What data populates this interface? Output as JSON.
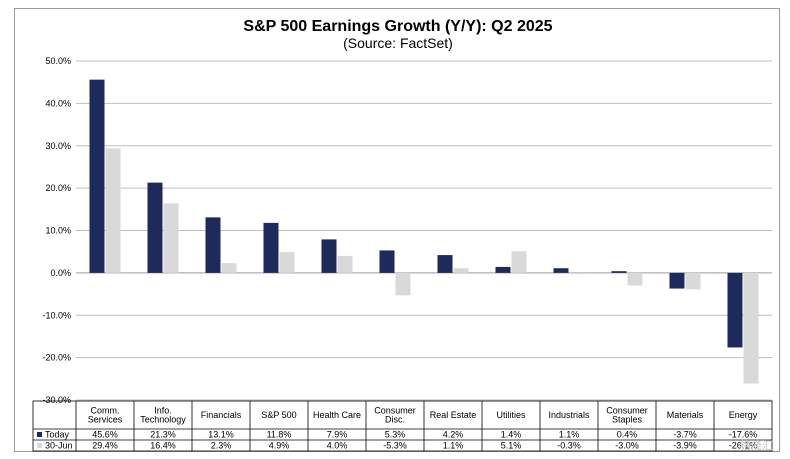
{
  "chart_data": {
    "type": "bar",
    "title": "S&P 500 Earnings Growth (Y/Y): Q2 2025",
    "subtitle": "(Source: FactSet)",
    "categories": [
      "Comm. Services",
      "Info. Technology",
      "Financials",
      "S&P 500",
      "Health Care",
      "Consumer Disc.",
      "Real Estate",
      "Utilities",
      "Industrials",
      "Consumer Staples",
      "Materials",
      "Energy"
    ],
    "category_lines": [
      [
        "Comm.",
        "Services"
      ],
      [
        "Info.",
        "Technology"
      ],
      [
        "Financials"
      ],
      [
        "S&P 500"
      ],
      [
        "Health Care"
      ],
      [
        "Consumer",
        "Disc."
      ],
      [
        "Real Estate"
      ],
      [
        "Utilities"
      ],
      [
        "Industrials"
      ],
      [
        "Consumer",
        "Staples"
      ],
      [
        "Materials"
      ],
      [
        "Energy"
      ]
    ],
    "series": [
      {
        "name": "Today",
        "color": "#1f2a5c",
        "values": [
          45.6,
          21.3,
          13.1,
          11.8,
          7.9,
          5.3,
          4.2,
          1.4,
          1.1,
          0.4,
          -3.7,
          -17.6
        ],
        "labels": [
          "45.6%",
          "21.3%",
          "13.1%",
          "11.8%",
          "7.9%",
          "5.3%",
          "4.2%",
          "1.4%",
          "1.1%",
          "0.4%",
          "-3.7%",
          "-17.6%"
        ]
      },
      {
        "name": "30-Jun",
        "color": "#d9d9d9",
        "values": [
          29.4,
          16.4,
          2.3,
          4.9,
          4.0,
          -5.3,
          1.1,
          5.1,
          -0.3,
          -3.0,
          -3.9,
          -26.1
        ],
        "labels": [
          "29.4%",
          "16.4%",
          "2.3%",
          "4.9%",
          "4.0%",
          "-5.3%",
          "1.1%",
          "5.1%",
          "-0.3%",
          "-3.0%",
          "-3.9%",
          "-26.1%"
        ]
      }
    ],
    "y_ticks": [
      "50.0%",
      "40.0%",
      "30.0%",
      "20.0%",
      "10.0%",
      "0.0%",
      "-10.0%",
      "-20.0%",
      "-30.0%"
    ],
    "ylim": [
      -30,
      50
    ],
    "grid": true,
    "legend": "data-table"
  },
  "watermark": "格隆汇"
}
